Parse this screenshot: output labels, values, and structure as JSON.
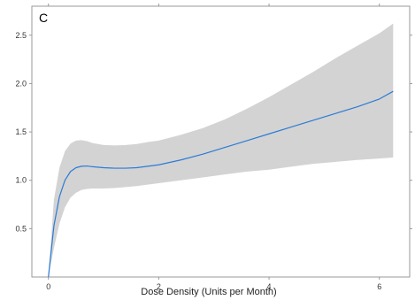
{
  "chart_data": {
    "type": "line",
    "panel_label": "C",
    "title": "",
    "xlabel": "Dose Density (Units per Month)",
    "ylabel": "",
    "xlim": [
      -0.3,
      6.55
    ],
    "ylim": [
      0.0,
      2.8
    ],
    "x_ticks": [
      0,
      2,
      4,
      6
    ],
    "y_ticks": [
      0.5,
      1.0,
      1.5,
      2.0,
      2.5
    ],
    "grid": false,
    "legend": "none",
    "series": [
      {
        "role": "estimate",
        "color": "#2b7bd6",
        "x": [
          0,
          0.1,
          0.2,
          0.3,
          0.4,
          0.5,
          0.6,
          0.7,
          0.8,
          1.0,
          1.2,
          1.4,
          1.6,
          1.8,
          2.0,
          2.4,
          2.8,
          3.2,
          3.6,
          4.0,
          4.4,
          4.8,
          5.2,
          5.6,
          6.0,
          6.25
        ],
        "y": [
          0.0,
          0.53,
          0.83,
          1.0,
          1.09,
          1.13,
          1.145,
          1.148,
          1.14,
          1.13,
          1.125,
          1.125,
          1.13,
          1.145,
          1.16,
          1.21,
          1.27,
          1.34,
          1.41,
          1.48,
          1.55,
          1.62,
          1.69,
          1.76,
          1.84,
          1.92
        ]
      }
    ],
    "confidence_band": {
      "color": "#d3d3d3",
      "x": [
        0,
        0.1,
        0.2,
        0.3,
        0.4,
        0.5,
        0.6,
        0.7,
        0.8,
        1.0,
        1.2,
        1.4,
        1.6,
        1.8,
        2.0,
        2.4,
        2.8,
        3.2,
        3.6,
        4.0,
        4.4,
        4.8,
        5.2,
        5.6,
        6.0,
        6.25
      ],
      "lower": [
        0.0,
        0.3,
        0.55,
        0.72,
        0.82,
        0.87,
        0.9,
        0.91,
        0.915,
        0.915,
        0.92,
        0.93,
        0.94,
        0.955,
        0.97,
        1.0,
        1.03,
        1.06,
        1.09,
        1.11,
        1.14,
        1.17,
        1.19,
        1.21,
        1.225,
        1.235
      ],
      "upper": [
        0.0,
        0.8,
        1.13,
        1.3,
        1.38,
        1.41,
        1.415,
        1.405,
        1.385,
        1.365,
        1.36,
        1.365,
        1.375,
        1.395,
        1.41,
        1.47,
        1.54,
        1.63,
        1.74,
        1.86,
        1.99,
        2.12,
        2.26,
        2.39,
        2.52,
        2.62
      ]
    }
  }
}
